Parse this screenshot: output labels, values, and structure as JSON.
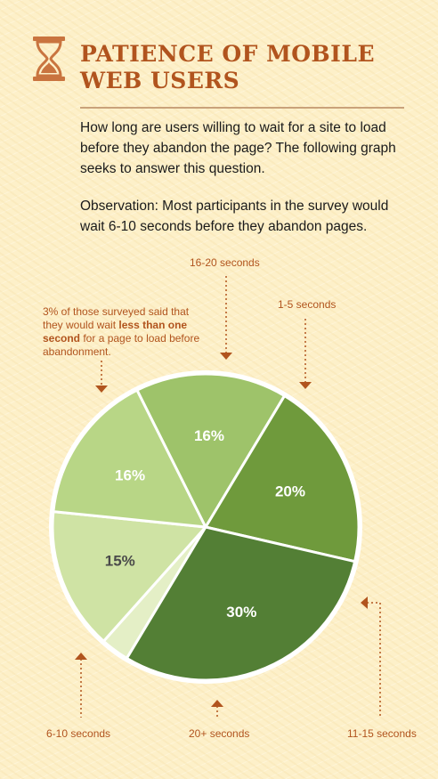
{
  "header": {
    "title_line1": "PATIENCE OF MOBILE",
    "title_line2": "WEB USERS",
    "icon": "hourglass-icon"
  },
  "intro": "How long are users willing to wait for a site to load before they abandon the page? The following graph seeks to answer this question.",
  "observation": "Observation: Most participants in the survey would wait 6-10 seconds before they abandon pages.",
  "callouts": {
    "under_one_pre": "3% of those surveyed said that they would wait ",
    "under_one_bold": "less than one second",
    "under_one_post": " for a page to load before abandonment.",
    "s16_20": "16-20 seconds",
    "s1_5": "1-5 seconds",
    "s11_15": "11-15 seconds",
    "s20plus": "20+ seconds",
    "s6_10": "6-10 seconds"
  },
  "colors": {
    "accent": "#b1541e",
    "less_than_one": "#e4efc6",
    "s16_20": "#cfe3a4",
    "s1_5": "#b8d686",
    "s11_15": "#9ec36a",
    "s20plus": "#6f9a3c",
    "s6_10": "#537f35"
  },
  "chart_data": {
    "type": "pie",
    "slices": [
      {
        "label": "less than one second",
        "value": 3,
        "display": ""
      },
      {
        "label": "16-20 seconds",
        "value": 15,
        "display": "15%"
      },
      {
        "label": "1-5 seconds",
        "value": 16,
        "display": "16%"
      },
      {
        "label": "11-15 seconds",
        "value": 16,
        "display": "16%"
      },
      {
        "label": "20+ seconds",
        "value": 20,
        "display": "20%"
      },
      {
        "label": "6-10 seconds",
        "value": 30,
        "display": "30%"
      }
    ]
  }
}
